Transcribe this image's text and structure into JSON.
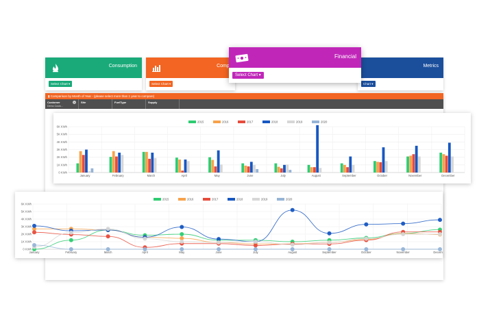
{
  "cards": {
    "consumption": {
      "title": "Consumption",
      "select_label": "Select Chart ▾",
      "color": "#1aaa7a",
      "icon": "flame-icon"
    },
    "cost": {
      "title": "Compar",
      "select_label": "Select Chart ▾",
      "color": "#f26522",
      "icon": "bar-chart-icon"
    },
    "financial": {
      "title": "Financial",
      "select_label": "Select Chart ▾",
      "color": "#c027b9",
      "icon": "money-icon"
    },
    "metrics": {
      "title": "Metrics",
      "select_label": "Chart ▾",
      "color": "#1b4f9c",
      "icon": ""
    }
  },
  "panel": {
    "title": "Comparison by Month of Year - (please select more than 1 year to compare)",
    "filters": [
      {
        "label": "Customer",
        "value": "Demo Custo..."
      },
      {
        "label": "Site",
        "value": ""
      },
      {
        "label": "FuelType",
        "value": ""
      },
      {
        "label": "Supply",
        "value": ""
      }
    ]
  },
  "chart_data": [
    {
      "type": "bar",
      "categories": [
        "January",
        "February",
        "March",
        "April",
        "May",
        "June",
        "July",
        "August",
        "September",
        "October",
        "November",
        "December"
      ],
      "yticks": [
        "0 KWh",
        "1K KWh",
        "2K KWh",
        "3K KWh",
        "4K KWh",
        "5K KWh",
        "6K KWh"
      ],
      "ylim": [
        0,
        6000
      ],
      "legend_position": "top",
      "grid": true,
      "series": [
        {
          "name": "2015",
          "color": "#2ecc71",
          "values": [
            1200,
            2050,
            2700,
            1950,
            2000,
            1200,
            1200,
            1000,
            1200,
            1500,
            2100,
            2600
          ]
        },
        {
          "name": "2016",
          "color": "#f7a24a",
          "values": [
            2800,
            2800,
            2700,
            1700,
            1650,
            900,
            750,
            700,
            1000,
            1400,
            2200,
            2400
          ]
        },
        {
          "name": "2017",
          "color": "#e74c3c",
          "values": [
            2300,
            2100,
            1800,
            250,
            800,
            800,
            550,
            700,
            700,
            1350,
            2400,
            2200
          ]
        },
        {
          "name": "2018",
          "color": "#1757c2",
          "values": [
            3000,
            2600,
            2600,
            1700,
            2900,
            1400,
            1000,
            6200,
            2100,
            3300,
            3500,
            3900
          ]
        },
        {
          "name": "2019",
          "color": "#d7d7d7",
          "values": [
            200,
            2300,
            1900,
            1500,
            1050,
            1000,
            1050,
            600,
            1000,
            1500,
            2100,
            2100
          ]
        },
        {
          "name": "2020",
          "color": "#96b4d6",
          "values": [
            550,
            0,
            0,
            0,
            0,
            450,
            350,
            0,
            0,
            0,
            0,
            0
          ]
        }
      ]
    },
    {
      "type": "line",
      "categories": [
        "January",
        "February",
        "March",
        "April",
        "May",
        "June",
        "July",
        "August",
        "September",
        "October",
        "November",
        "December"
      ],
      "yticks": [
        "0 KWh",
        "1K KWh",
        "2K KWh",
        "3K KWh",
        "4K KWh",
        "5K KWh",
        "6K KWh"
      ],
      "ylim": [
        0,
        6000
      ],
      "legend_position": "top",
      "grid": true,
      "series": [
        {
          "name": "2015",
          "color": "#2ecc71",
          "values": [
            0,
            1200,
            2550,
            1850,
            2000,
            1200,
            1200,
            1000,
            1200,
            1500,
            2100,
            2600
          ]
        },
        {
          "name": "2016",
          "color": "#f7a24a",
          "values": [
            2700,
            2700,
            2550,
            1600,
            1450,
            900,
            700,
            700,
            900,
            1300,
            2100,
            1950
          ]
        },
        {
          "name": "2017",
          "color": "#e74c3c",
          "values": [
            2250,
            1950,
            1700,
            250,
            750,
            750,
            500,
            700,
            700,
            1200,
            2300,
            2300
          ]
        },
        {
          "name": "2018",
          "color": "#1757c2",
          "values": [
            3100,
            2450,
            2550,
            1600,
            2950,
            1350,
            1000,
            5200,
            2100,
            3300,
            3400,
            3900
          ]
        },
        {
          "name": "2019",
          "color": "#d7d7d7",
          "values": [
            300,
            2200,
            2700,
            1400,
            1000,
            900,
            1000,
            600,
            900,
            1400,
            2000,
            2000
          ]
        },
        {
          "name": "2020",
          "color": "#96b4d6",
          "values": [
            550,
            0,
            0,
            0,
            0,
            0,
            0,
            0,
            0,
            0,
            0,
            0
          ]
        }
      ]
    }
  ]
}
